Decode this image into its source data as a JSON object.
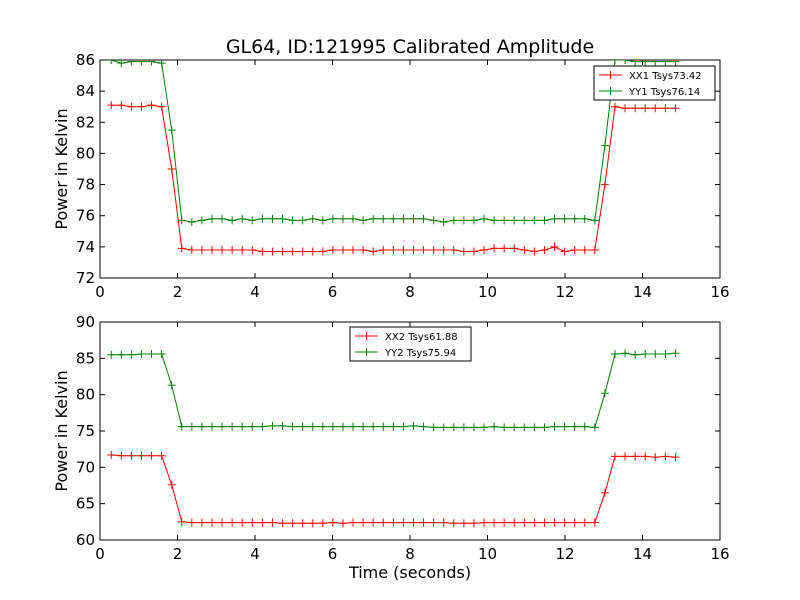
{
  "title": "GL64, ID:121995 Calibrated Amplitude",
  "colors": {
    "red": "#ff0000",
    "green": "#008000"
  },
  "chart_data": [
    {
      "type": "line",
      "title": "GL64, ID:121995 Calibrated Amplitude",
      "xlabel": "",
      "ylabel": "Power in Kelvin",
      "xlim": [
        0,
        16
      ],
      "ylim": [
        72,
        86
      ],
      "xticks": [
        "0",
        "2",
        "4",
        "6",
        "8",
        "10",
        "12",
        "14",
        "16"
      ],
      "yticks": [
        "72",
        "74",
        "76",
        "78",
        "80",
        "82",
        "84",
        "86"
      ],
      "grid": false,
      "legend_position": "top-right",
      "x": [
        0.29,
        0.55,
        0.81,
        1.07,
        1.33,
        1.59,
        1.85,
        2.11,
        2.37,
        2.63,
        2.89,
        3.15,
        3.41,
        3.67,
        3.93,
        4.19,
        4.45,
        4.71,
        4.97,
        5.23,
        5.49,
        5.75,
        6.01,
        6.27,
        6.53,
        6.79,
        7.05,
        7.31,
        7.57,
        7.83,
        8.09,
        8.35,
        8.61,
        8.87,
        9.13,
        9.39,
        9.65,
        9.91,
        10.17,
        10.43,
        10.69,
        10.95,
        11.21,
        11.47,
        11.73,
        11.99,
        12.25,
        12.51,
        12.77,
        13.03,
        13.29,
        13.55,
        13.81,
        14.07,
        14.33,
        14.59,
        14.85
      ],
      "series": [
        {
          "name": "XX1 Tsys73.42",
          "color": "#ff0000",
          "values": [
            83.1,
            83.1,
            83.0,
            83.0,
            83.1,
            83.0,
            79.0,
            73.9,
            73.8,
            73.8,
            73.8,
            73.8,
            73.8,
            73.8,
            73.8,
            73.7,
            73.7,
            73.7,
            73.7,
            73.7,
            73.7,
            73.7,
            73.8,
            73.8,
            73.8,
            73.8,
            73.7,
            73.8,
            73.8,
            73.8,
            73.8,
            73.8,
            73.8,
            73.8,
            73.8,
            73.7,
            73.7,
            73.8,
            73.9,
            73.9,
            73.9,
            73.8,
            73.7,
            73.8,
            74.0,
            73.7,
            73.8,
            73.8,
            73.8,
            78.0,
            83.0,
            82.9,
            82.9,
            82.9,
            82.9,
            82.9,
            82.9
          ]
        },
        {
          "name": "YY1 Tsys76.14",
          "color": "#008000",
          "values": [
            86.0,
            85.8,
            85.9,
            85.9,
            85.9,
            85.8,
            81.5,
            75.7,
            75.6,
            75.7,
            75.8,
            75.8,
            75.7,
            75.8,
            75.7,
            75.8,
            75.8,
            75.8,
            75.7,
            75.7,
            75.8,
            75.7,
            75.8,
            75.8,
            75.8,
            75.7,
            75.8,
            75.8,
            75.8,
            75.8,
            75.8,
            75.8,
            75.7,
            75.6,
            75.7,
            75.7,
            75.7,
            75.8,
            75.7,
            75.7,
            75.7,
            75.7,
            75.7,
            75.7,
            75.8,
            75.8,
            75.8,
            75.8,
            75.7,
            80.5,
            86.0,
            86.0,
            85.9,
            85.9,
            85.9,
            85.9,
            85.9
          ]
        }
      ]
    },
    {
      "type": "line",
      "title": "",
      "xlabel": "Time (seconds)",
      "ylabel": "Power in Kelvin",
      "xlim": [
        0,
        16
      ],
      "ylim": [
        60,
        90
      ],
      "xticks": [
        "0",
        "2",
        "4",
        "6",
        "8",
        "10",
        "12",
        "14",
        "16"
      ],
      "yticks": [
        "60",
        "65",
        "70",
        "75",
        "80",
        "85",
        "90"
      ],
      "grid": false,
      "legend_position": "top-center",
      "x": [
        0.29,
        0.55,
        0.81,
        1.07,
        1.33,
        1.59,
        1.85,
        2.11,
        2.37,
        2.63,
        2.89,
        3.15,
        3.41,
        3.67,
        3.93,
        4.19,
        4.45,
        4.71,
        4.97,
        5.23,
        5.49,
        5.75,
        6.01,
        6.27,
        6.53,
        6.79,
        7.05,
        7.31,
        7.57,
        7.83,
        8.09,
        8.35,
        8.61,
        8.87,
        9.13,
        9.39,
        9.65,
        9.91,
        10.17,
        10.43,
        10.69,
        10.95,
        11.21,
        11.47,
        11.73,
        11.99,
        12.25,
        12.51,
        12.77,
        13.03,
        13.29,
        13.55,
        13.81,
        14.07,
        14.33,
        14.59,
        14.85
      ],
      "series": [
        {
          "name": "XX2 Tsys61.88",
          "color": "#ff0000",
          "values": [
            71.7,
            71.6,
            71.6,
            71.6,
            71.6,
            71.6,
            67.6,
            62.5,
            62.4,
            62.4,
            62.4,
            62.4,
            62.4,
            62.4,
            62.4,
            62.4,
            62.4,
            62.3,
            62.3,
            62.3,
            62.3,
            62.3,
            62.4,
            62.3,
            62.4,
            62.4,
            62.4,
            62.4,
            62.4,
            62.4,
            62.4,
            62.4,
            62.4,
            62.4,
            62.3,
            62.3,
            62.3,
            62.4,
            62.4,
            62.4,
            62.4,
            62.4,
            62.4,
            62.4,
            62.4,
            62.4,
            62.4,
            62.4,
            62.4,
            66.5,
            71.5,
            71.5,
            71.5,
            71.5,
            71.4,
            71.5,
            71.4
          ]
        },
        {
          "name": "YY2 Tsys75.94",
          "color": "#008000",
          "values": [
            85.5,
            85.5,
            85.5,
            85.6,
            85.6,
            85.6,
            81.3,
            75.6,
            75.6,
            75.6,
            75.6,
            75.6,
            75.6,
            75.6,
            75.6,
            75.6,
            75.7,
            75.7,
            75.6,
            75.6,
            75.6,
            75.6,
            75.6,
            75.6,
            75.6,
            75.6,
            75.6,
            75.6,
            75.6,
            75.6,
            75.7,
            75.6,
            75.5,
            75.5,
            75.5,
            75.5,
            75.5,
            75.5,
            75.6,
            75.5,
            75.5,
            75.5,
            75.5,
            75.5,
            75.6,
            75.6,
            75.6,
            75.6,
            75.5,
            80.2,
            85.6,
            85.7,
            85.5,
            85.6,
            85.6,
            85.6,
            85.7
          ]
        }
      ]
    }
  ]
}
